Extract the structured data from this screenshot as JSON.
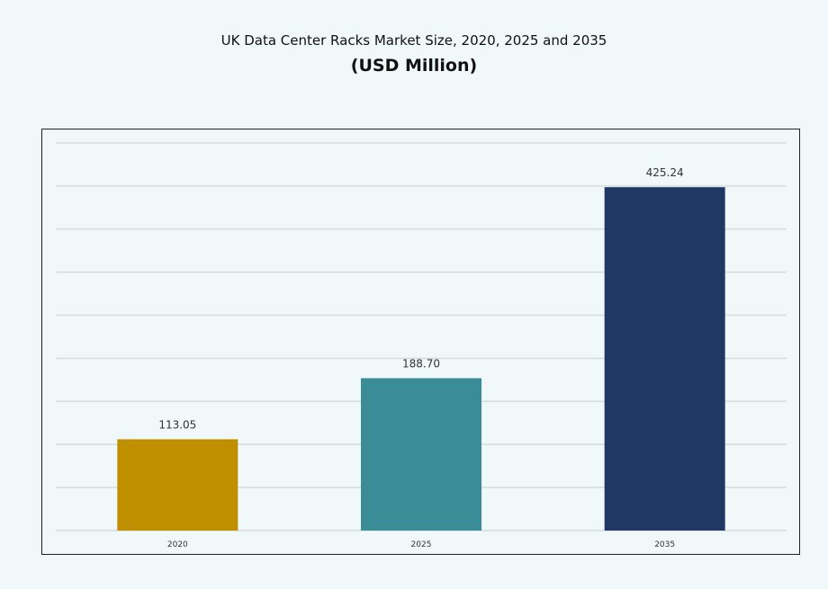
{
  "chart_data": {
    "type": "bar",
    "title": "UK Data Center Racks Market Size, 2020, 2025 and 2035",
    "subtitle": "(USD Million)",
    "categories": [
      "2020",
      "2025",
      "2035"
    ],
    "values": [
      113.05,
      188.7,
      425.24
    ],
    "value_labels": [
      "113.05",
      "188.70",
      "425.24"
    ],
    "colors": [
      "#bf8f00",
      "#3a8c96",
      "#203864"
    ],
    "xlabel": "",
    "ylabel": "",
    "ylim": [
      0,
      480
    ],
    "y_axis_labels_shown": false,
    "grid": true,
    "legend": "none"
  }
}
